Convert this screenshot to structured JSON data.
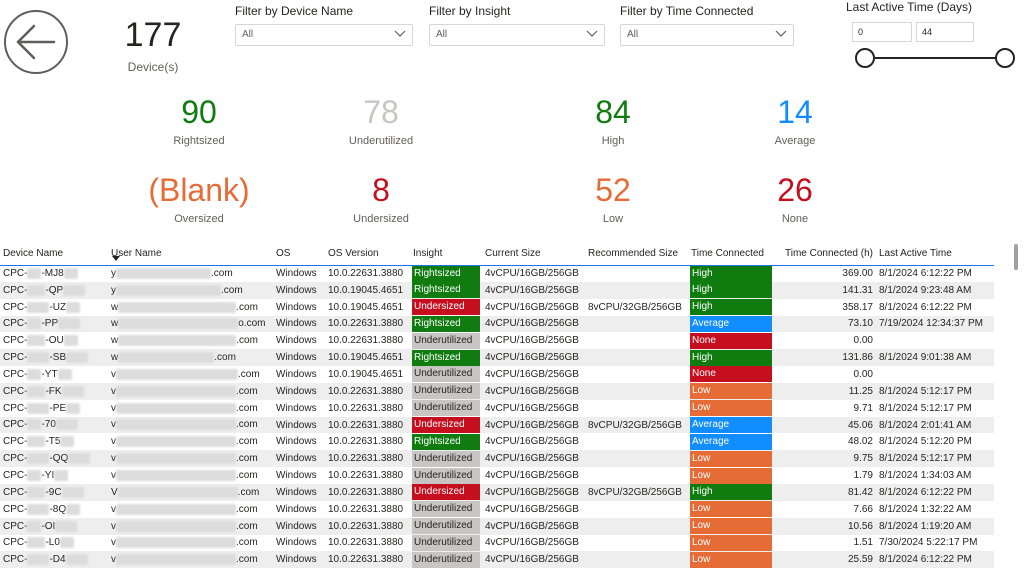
{
  "device_card": {
    "value": "177",
    "label": "Device(s)"
  },
  "filters": {
    "device": {
      "title": "Filter by Device Name",
      "value": "All"
    },
    "insight": {
      "title": "Filter by Insight",
      "value": "All"
    },
    "time": {
      "title": "Filter by Time Connected",
      "value": "All"
    }
  },
  "slicer": {
    "title": "Last Active Time (Days)",
    "min": "0",
    "max": "44"
  },
  "kpis": {
    "rightsized": {
      "value": "90",
      "label": "Rightsized",
      "color": "#107c10"
    },
    "underutilized": {
      "value": "78",
      "label": "Underutilized",
      "color": "#c8c6c4"
    },
    "high": {
      "value": "84",
      "label": "High",
      "color": "#107c10"
    },
    "average": {
      "value": "14",
      "label": "Average",
      "color": "#118dff"
    },
    "oversized": {
      "value": "(Blank)",
      "label": "Oversized",
      "color": "#e66c37"
    },
    "undersized": {
      "value": "8",
      "label": "Undersized",
      "color": "#c50f1f"
    },
    "low": {
      "value": "52",
      "label": "Low",
      "color": "#e66c37"
    },
    "none": {
      "value": "26",
      "label": "None",
      "color": "#c50f1f"
    }
  },
  "colors": {
    "Rightsized": "#107c10",
    "Undersized": "#c50f1f",
    "Underutilized": "#c8c6c4",
    "High": "#107c10",
    "Average": "#118dff",
    "None": "#c50f1f",
    "Low": "#e66c37"
  },
  "table": {
    "columns": [
      "Device Name",
      "User Name",
      "OS",
      "OS Version",
      "Insight",
      "Current Size",
      "Recommended Size",
      "Time Connected",
      "Time Connected (h)",
      "Last Active Time"
    ],
    "rows": [
      {
        "dev_prefix": "CPC-",
        "dev_suffix": "-MJ8",
        "user_prefix": "y",
        "user_suffix": ".com",
        "os": "Windows",
        "osv": "10.0.22631.3880",
        "insight": "Rightsized",
        "cur": "4vCPU/16GB/256GB",
        "rec": "",
        "tc": "High",
        "tch": "369.00",
        "last": "8/1/2024 6:12:22 PM"
      },
      {
        "dev_prefix": "CPC-",
        "dev_suffix": "-QP",
        "user_prefix": "y",
        "user_suffix": ".com",
        "os": "Windows",
        "osv": "10.0.19045.4651",
        "insight": "Rightsized",
        "cur": "4vCPU/16GB/256GB",
        "rec": "",
        "tc": "High",
        "tch": "141.31",
        "last": "8/1/2024 9:23:48 AM"
      },
      {
        "dev_prefix": "CPC-",
        "dev_suffix": "-UZ",
        "user_prefix": "w",
        "user_suffix": ".com",
        "os": "Windows",
        "osv": "10.0.19045.4651",
        "insight": "Undersized",
        "cur": "4vCPU/16GB/256GB",
        "rec": "8vCPU/32GB/256GB",
        "tc": "High",
        "tch": "358.17",
        "last": "8/1/2024 6:12:22 PM"
      },
      {
        "dev_prefix": "CPC-",
        "dev_suffix": "-PP",
        "user_prefix": "w",
        "user_suffix": "o.com",
        "os": "Windows",
        "osv": "10.0.22631.3880",
        "insight": "Rightsized",
        "cur": "4vCPU/16GB/256GB",
        "rec": "",
        "tc": "Average",
        "tch": "73.10",
        "last": "7/19/2024 12:34:37 PM"
      },
      {
        "dev_prefix": "CPC-",
        "dev_suffix": "-OU",
        "user_prefix": "w",
        "user_suffix": ".com",
        "os": "Windows",
        "osv": "10.0.22631.3880",
        "insight": "Underutilized",
        "cur": "4vCPU/16GB/256GB",
        "rec": "",
        "tc": "None",
        "tch": "0.00",
        "last": ""
      },
      {
        "dev_prefix": "CPC-",
        "dev_suffix": "-SB",
        "user_prefix": "w",
        "user_suffix": ".com",
        "os": "Windows",
        "osv": "10.0.19045.4651",
        "insight": "Rightsized",
        "cur": "4vCPU/16GB/256GB",
        "rec": "",
        "tc": "High",
        "tch": "131.86",
        "last": "8/1/2024 9:01:38 AM"
      },
      {
        "dev_prefix": "CPC-",
        "dev_suffix": "-YT",
        "user_prefix": "v",
        "user_suffix": ".com",
        "os": "Windows",
        "osv": "10.0.19045.4651",
        "insight": "Underutilized",
        "cur": "4vCPU/16GB/256GB",
        "rec": "",
        "tc": "None",
        "tch": "0.00",
        "last": ""
      },
      {
        "dev_prefix": "CPC-",
        "dev_suffix": "-FK",
        "user_prefix": "v",
        "user_suffix": ".com",
        "os": "Windows",
        "osv": "10.0.22631.3880",
        "insight": "Underutilized",
        "cur": "4vCPU/16GB/256GB",
        "rec": "",
        "tc": "Low",
        "tch": "11.25",
        "last": "8/1/2024 5:12:17 PM"
      },
      {
        "dev_prefix": "CPC-",
        "dev_suffix": "-PE",
        "user_prefix": "v",
        "user_suffix": ".com",
        "os": "Windows",
        "osv": "10.0.22631.3880",
        "insight": "Underutilized",
        "cur": "4vCPU/16GB/256GB",
        "rec": "",
        "tc": "Low",
        "tch": "9.71",
        "last": "8/1/2024 5:12:17 PM"
      },
      {
        "dev_prefix": "CPC-",
        "dev_suffix": "-70",
        "user_prefix": "v",
        "user_suffix": ".com",
        "os": "Windows",
        "osv": "10.0.22631.3880",
        "insight": "Undersized",
        "cur": "4vCPU/16GB/256GB",
        "rec": "8vCPU/32GB/256GB",
        "tc": "Average",
        "tch": "45.06",
        "last": "8/1/2024 2:01:41 AM"
      },
      {
        "dev_prefix": "CPC-",
        "dev_suffix": "-T5",
        "user_prefix": "v",
        "user_suffix": ".com",
        "os": "Windows",
        "osv": "10.0.22631.3880",
        "insight": "Rightsized",
        "cur": "4vCPU/16GB/256GB",
        "rec": "",
        "tc": "Average",
        "tch": "48.02",
        "last": "8/1/2024 5:12:20 PM"
      },
      {
        "dev_prefix": "CPC-",
        "dev_suffix": "-QQ",
        "user_prefix": "v",
        "user_suffix": ".com",
        "os": "Windows",
        "osv": "10.0.22631.3880",
        "insight": "Underutilized",
        "cur": "4vCPU/16GB/256GB",
        "rec": "",
        "tc": "Low",
        "tch": "9.75",
        "last": "8/1/2024 5:12:17 PM"
      },
      {
        "dev_prefix": "CPC-",
        "dev_suffix": "-YI",
        "user_prefix": "v",
        "user_suffix": ".com",
        "os": "Windows",
        "osv": "10.0.22631.3880",
        "insight": "Underutilized",
        "cur": "4vCPU/16GB/256GB",
        "rec": "",
        "tc": "Low",
        "tch": "1.79",
        "last": "8/1/2024 1:34:03 AM"
      },
      {
        "dev_prefix": "CPC-",
        "dev_suffix": "-9C",
        "user_prefix": "V",
        "user_suffix": ".com",
        "os": "Windows",
        "osv": "10.0.22631.3880",
        "insight": "Undersized",
        "cur": "4vCPU/16GB/256GB",
        "rec": "8vCPU/32GB/256GB",
        "tc": "High",
        "tch": "81.42",
        "last": "8/1/2024 6:12:22 PM"
      },
      {
        "dev_prefix": "CPC-",
        "dev_suffix": "-8Q",
        "user_prefix": "v",
        "user_suffix": ".com",
        "os": "Windows",
        "osv": "10.0.22631.3880",
        "insight": "Underutilized",
        "cur": "4vCPU/16GB/256GB",
        "rec": "",
        "tc": "Low",
        "tch": "7.66",
        "last": "8/1/2024 1:32:22 AM"
      },
      {
        "dev_prefix": "CPC-",
        "dev_suffix": "-OI",
        "user_prefix": "v",
        "user_suffix": ".com",
        "os": "Windows",
        "osv": "10.0.22631.3880",
        "insight": "Underutilized",
        "cur": "4vCPU/16GB/256GB",
        "rec": "",
        "tc": "Low",
        "tch": "10.56",
        "last": "8/1/2024 1:19:20 AM"
      },
      {
        "dev_prefix": "CPC-",
        "dev_suffix": "-L0",
        "user_prefix": "v",
        "user_suffix": ".com",
        "os": "Windows",
        "osv": "10.0.22631.3880",
        "insight": "Underutilized",
        "cur": "4vCPU/16GB/256GB",
        "rec": "",
        "tc": "Low",
        "tch": "1.51",
        "last": "7/30/2024 5:22:17 PM"
      },
      {
        "dev_prefix": "CPC-",
        "dev_suffix": "-D4",
        "user_prefix": "v",
        "user_suffix": ".com",
        "os": "Windows",
        "osv": "10.0.22631.3880",
        "insight": "Underutilized",
        "cur": "4vCPU/16GB/256GB",
        "rec": "",
        "tc": "Low",
        "tch": "25.59",
        "last": "8/1/2024 6:12:22 PM"
      }
    ]
  }
}
